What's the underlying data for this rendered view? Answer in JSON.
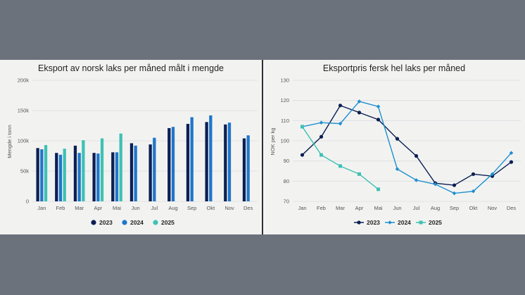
{
  "chart_data": [
    {
      "type": "bar",
      "title": "Eksport av norsk laks per måned målt i mengde",
      "xlabel": "",
      "ylabel": "Mengde i tonn",
      "ylim": [
        0,
        200000
      ],
      "yticks": [
        0,
        50000,
        100000,
        150000,
        200000
      ],
      "ytick_labels": [
        "0",
        "50k",
        "100k",
        "150k",
        "200k"
      ],
      "grid": true,
      "legend": "bottom",
      "categories": [
        "Jan",
        "Feb",
        "Mar",
        "Apr",
        "Mai",
        "Jun",
        "Jul",
        "Aug",
        "Sep",
        "Okt",
        "Nov",
        "Des"
      ],
      "series": [
        {
          "name": "2023",
          "color": "#0c1f55",
          "values": [
            88000,
            80000,
            92000,
            80000,
            81000,
            96000,
            94000,
            121000,
            128000,
            131000,
            127000,
            104000
          ]
        },
        {
          "name": "2024",
          "color": "#1f76c9",
          "values": [
            86000,
            77000,
            80000,
            79000,
            81000,
            92000,
            105000,
            123000,
            139000,
            142000,
            130000,
            109000
          ]
        },
        {
          "name": "2025",
          "color": "#3fc1b4",
          "values": [
            93000,
            87000,
            101000,
            104000,
            112000,
            null,
            null,
            null,
            null,
            null,
            null,
            null
          ]
        }
      ]
    },
    {
      "type": "line",
      "title": "Eksportpris fersk hel laks per måned",
      "xlabel": "",
      "ylabel": "NOK per kg",
      "ylim": [
        70,
        130
      ],
      "yticks": [
        70,
        80,
        90,
        100,
        110,
        120,
        130
      ],
      "ytick_labels": [
        "70",
        "80",
        "90",
        "100",
        "110",
        "120",
        "130"
      ],
      "grid": true,
      "legend": "bottom",
      "categories": [
        "Jan",
        "Feb",
        "Mar",
        "Apr",
        "Mai",
        "Jun",
        "Jul",
        "Aug",
        "Sep",
        "Okt",
        "Nov",
        "Des"
      ],
      "series": [
        {
          "name": "2023",
          "color": "#0c1f55",
          "marker": "circle",
          "values": [
            93,
            102,
            117.5,
            114,
            110.5,
            101,
            92.5,
            79,
            78,
            83.5,
            82.5,
            89.5
          ]
        },
        {
          "name": "2024",
          "color": "#1f8fd0",
          "marker": "diamond",
          "values": [
            107,
            109,
            108.5,
            119.5,
            117,
            86,
            80.5,
            78.5,
            74,
            75,
            83.5,
            94
          ]
        },
        {
          "name": "2025",
          "color": "#3fc1b4",
          "marker": "square",
          "values": [
            107,
            93,
            87.5,
            83.5,
            76,
            null,
            null,
            null,
            null,
            null,
            null,
            null
          ]
        }
      ]
    }
  ]
}
